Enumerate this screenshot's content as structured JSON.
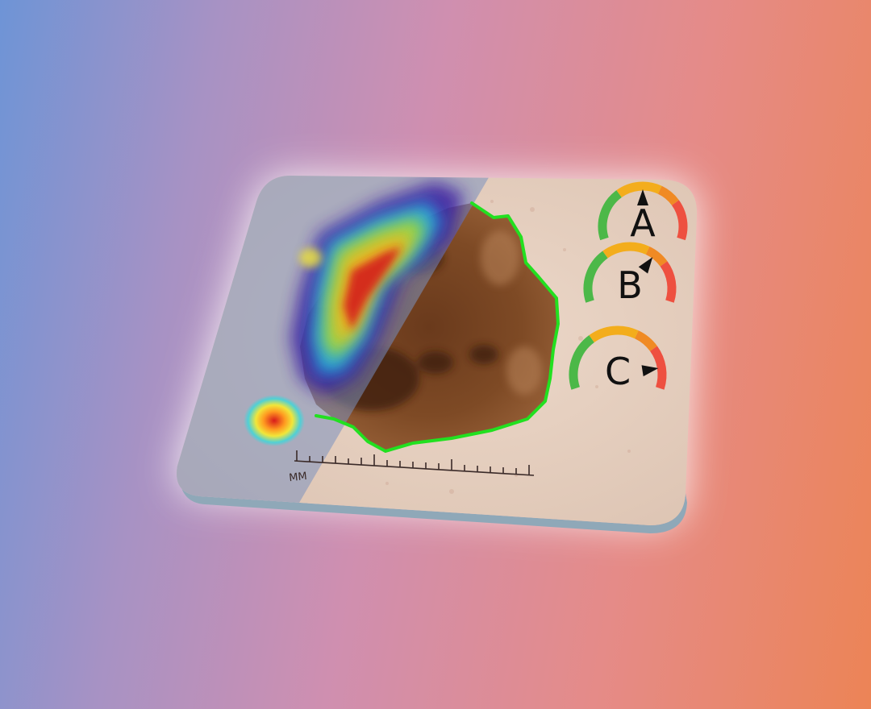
{
  "ruler": {
    "unit_label": "MM"
  },
  "gauges": [
    {
      "letter": "A",
      "level": 0.5
    },
    {
      "letter": "B",
      "level": 0.7
    },
    {
      "letter": "C",
      "level": 0.95
    }
  ],
  "colors": {
    "gauge_green": "#4cb848",
    "gauge_yellow": "#f3ad1c",
    "gauge_orange": "#f08a24",
    "gauge_red": "#ee5040",
    "lesion_border": "#22e020",
    "skin": "#e6cfbe",
    "card_edge": "#8fa8b8"
  }
}
